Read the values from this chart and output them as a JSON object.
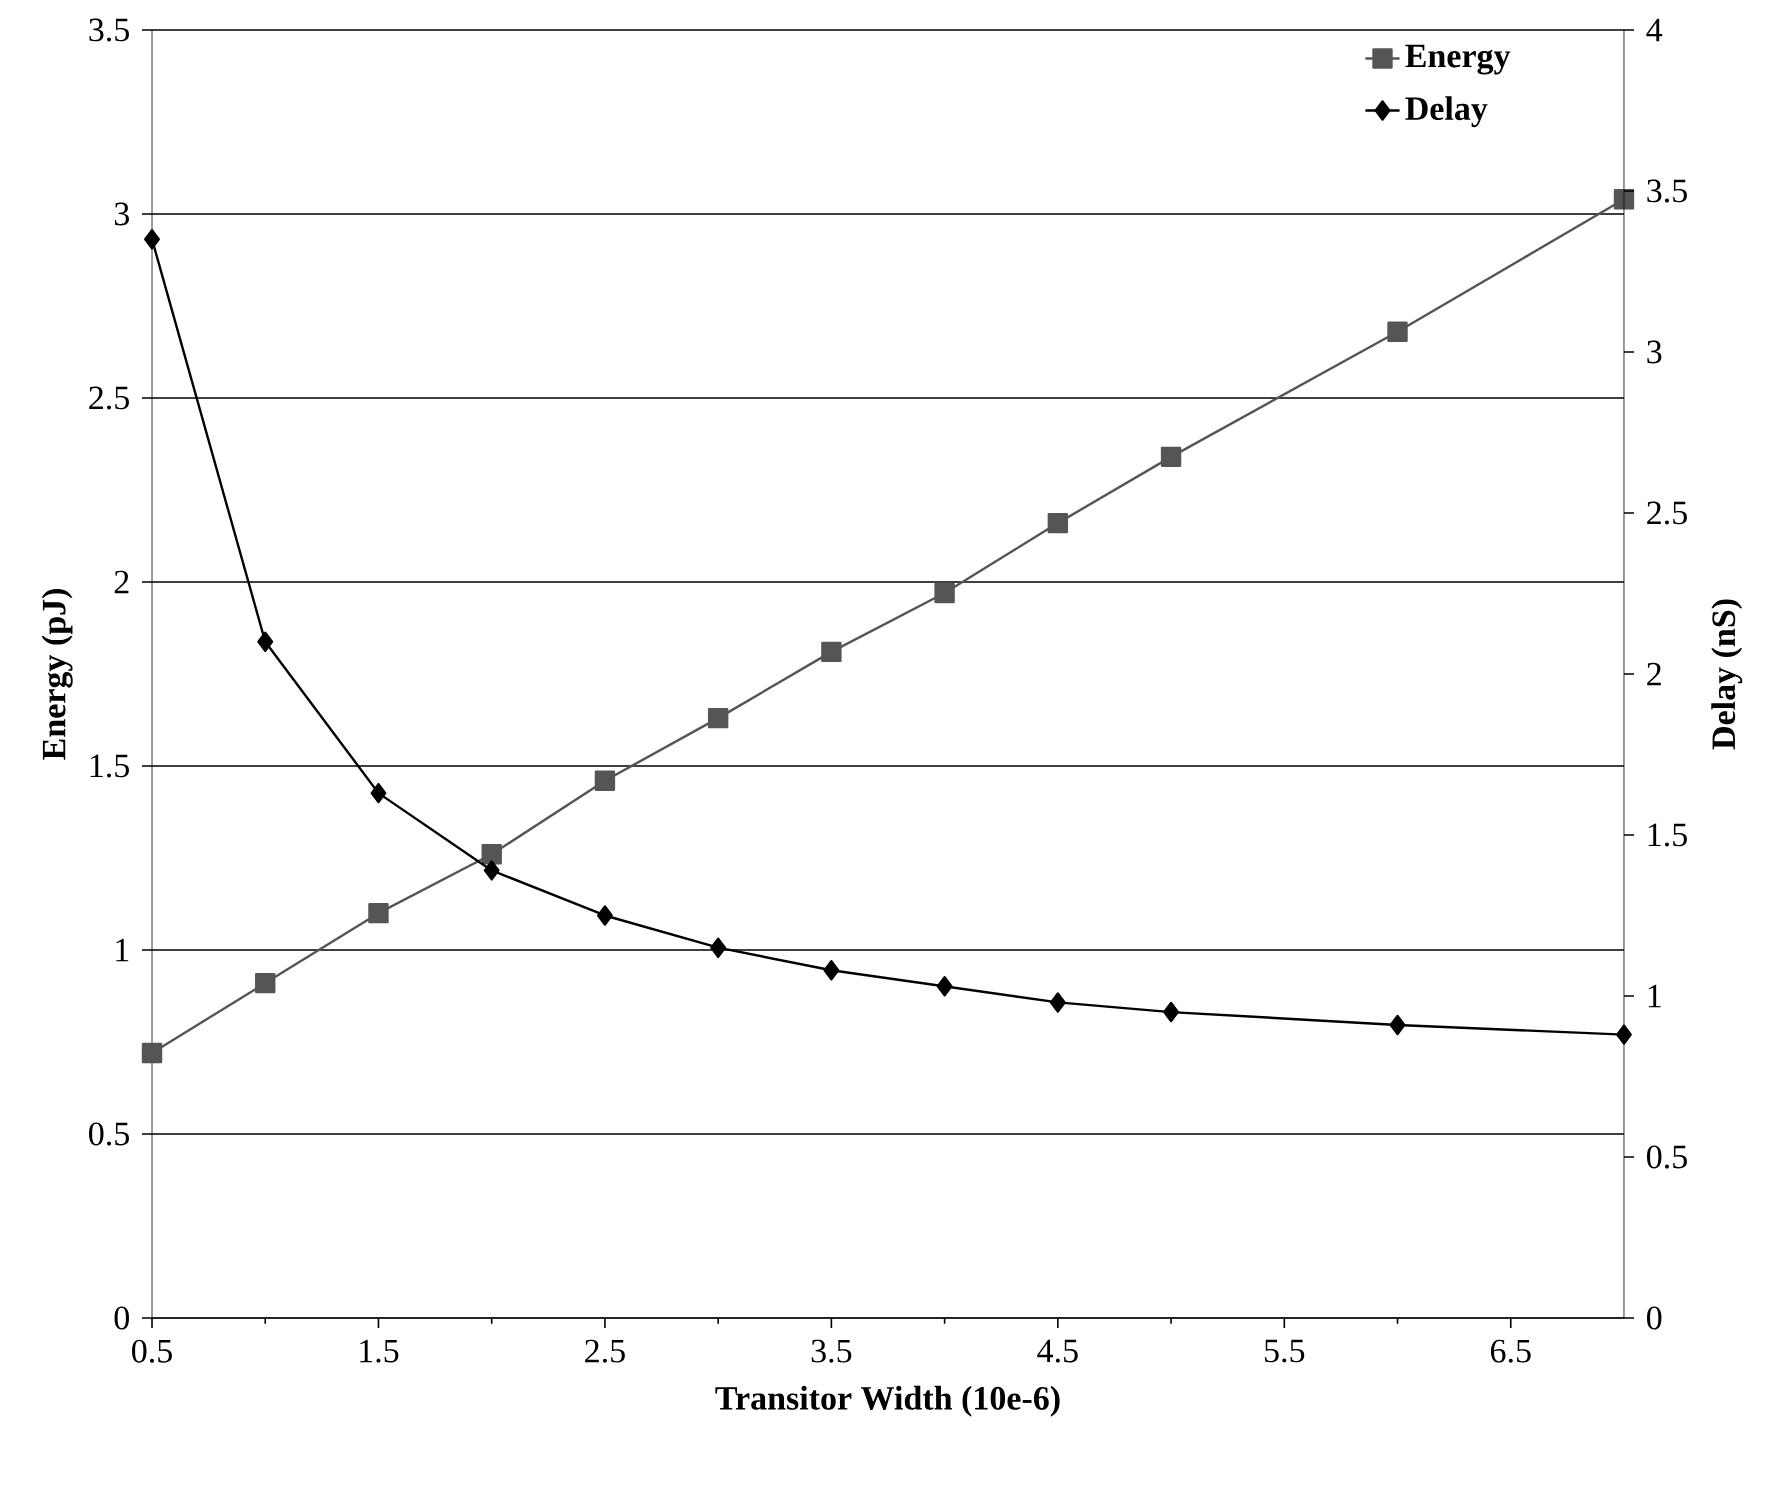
{
  "chart_data": {
    "type": "line",
    "xlabel": "Transitor Width (10e-6)",
    "ylabel": "Energy (pJ)",
    "y2label": "Delay (nS)",
    "x": [
      0.5,
      1,
      1.5,
      2,
      2.5,
      3,
      3.5,
      4,
      4.5,
      5,
      6,
      7
    ],
    "series": [
      {
        "name": "Energy",
        "color": "#555555",
        "marker": "square",
        "values": [
          0.72,
          0.91,
          1.1,
          1.26,
          1.46,
          1.63,
          1.81,
          1.97,
          2.16,
          2.34,
          2.68,
          3.04
        ]
      },
      {
        "name": "Delay",
        "color": "#000000",
        "marker": "diamond",
        "axis": "y2",
        "values": [
          3.35,
          2.1,
          1.63,
          1.39,
          1.25,
          1.15,
          1.08,
          1.03,
          0.98,
          0.95,
          0.91,
          0.88
        ]
      }
    ],
    "xlim": [
      0.5,
      7
    ],
    "xticks": [
      0.5,
      1.5,
      2.5,
      3.5,
      4.5,
      5.5,
      6.5
    ],
    "ylim": [
      0,
      3.5
    ],
    "yticks": [
      0,
      0.5,
      1,
      1.5,
      2,
      2.5,
      3,
      3.5
    ],
    "y2lim": [
      0,
      4
    ],
    "y2ticks": [
      0,
      0.5,
      1,
      1.5,
      2,
      2.5,
      3,
      3.5,
      4
    ],
    "grid": "y",
    "legend": "top right",
    "line_style": "solid"
  }
}
